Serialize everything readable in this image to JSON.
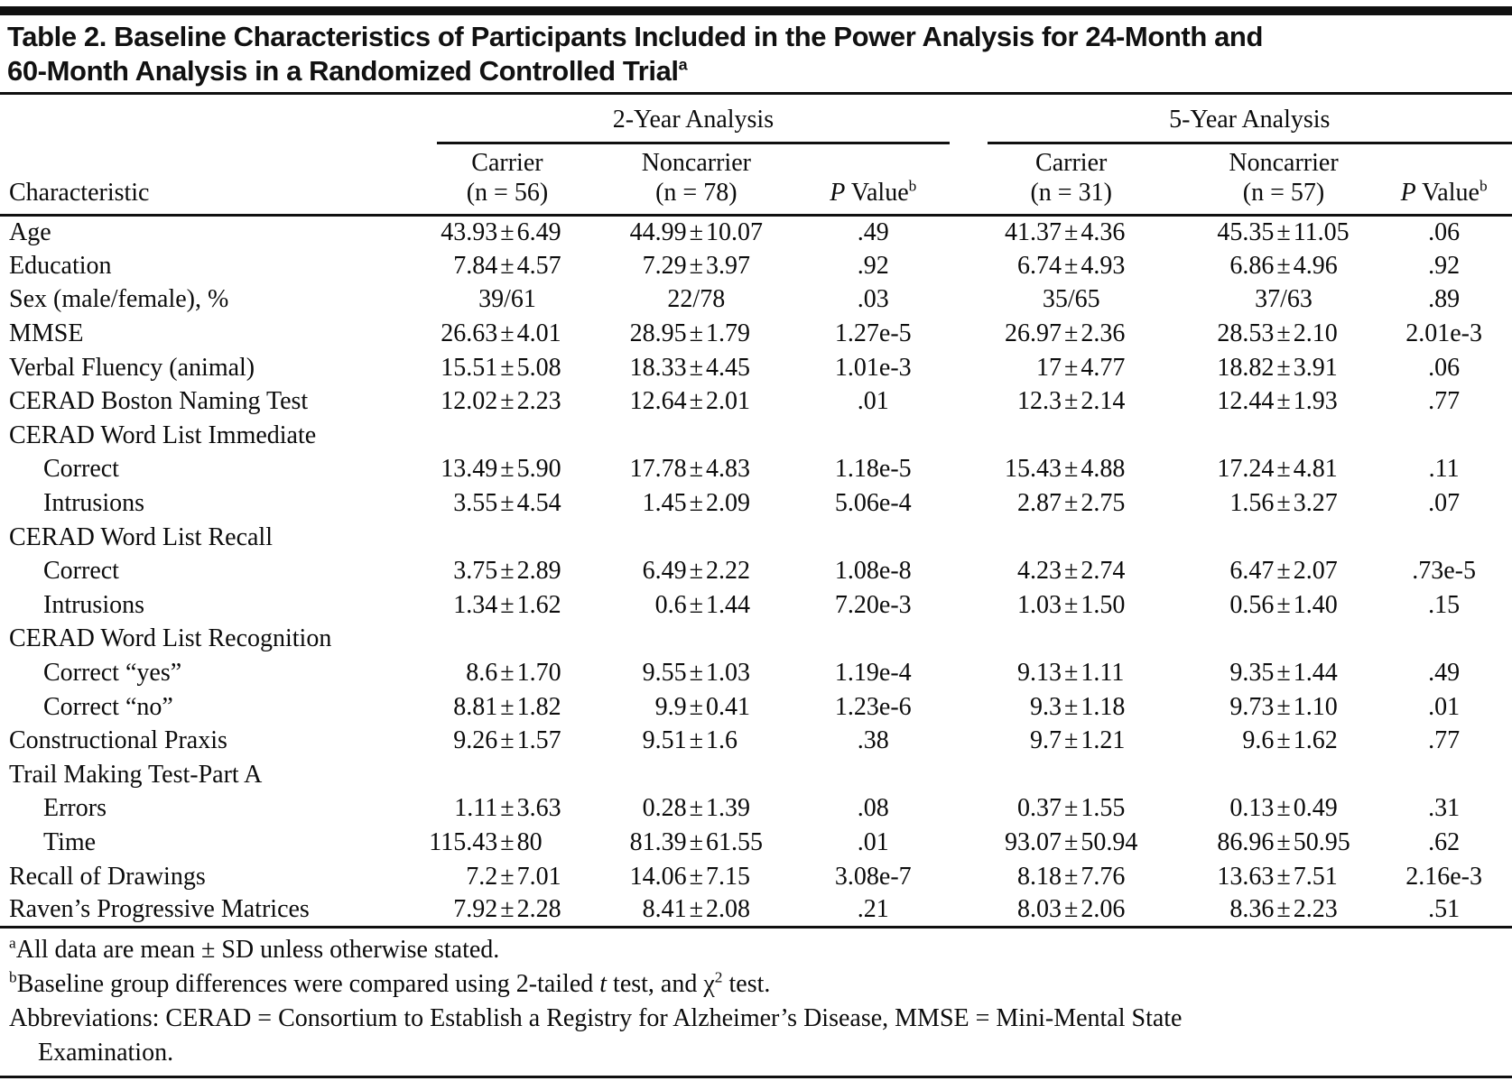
{
  "title": {
    "lines": [
      "Table 2. Baseline Characteristics of Participants Included in the Power Analysis for 24-Month and",
      "60-Month Analysis in a Randomized Controlled Trial"
    ],
    "superscript": "a"
  },
  "table": {
    "characteristic_header": "Characteristic",
    "groups": [
      {
        "label": "2-Year Analysis",
        "carrier": {
          "name": "Carrier",
          "n": "(n = 56)"
        },
        "noncarrier": {
          "name": "Noncarrier",
          "n": "(n = 78)"
        }
      },
      {
        "label": "5-Year Analysis",
        "carrier": {
          "name": "Carrier",
          "n": "(n = 31)"
        },
        "noncarrier": {
          "name": "Noncarrier",
          "n": "(n = 57)"
        }
      }
    ],
    "p_value_header": {
      "italic": "P",
      "text": " Value",
      "sup": "b"
    },
    "rows": [
      {
        "label": "Age",
        "indent": 0,
        "cells": [
          "43.93±6.49",
          "44.99±10.07",
          ".49",
          "41.37±4.36",
          "45.35±11.05",
          ".06"
        ]
      },
      {
        "label": "Education",
        "indent": 0,
        "cells": [
          "7.84±4.57",
          "7.29±3.97",
          ".92",
          "6.74±4.93",
          "6.86±4.96",
          ".92"
        ]
      },
      {
        "label": "Sex (male/female), %",
        "indent": 0,
        "cells": [
          "39/61",
          "22/78",
          ".03",
          "35/65",
          "37/63",
          ".89"
        ]
      },
      {
        "label": "MMSE",
        "indent": 0,
        "cells": [
          "26.63±4.01",
          "28.95±1.79",
          "1.27e-5",
          "26.97±2.36",
          "28.53±2.10",
          "2.01e-3"
        ]
      },
      {
        "label": "Verbal Fluency (animal)",
        "indent": 0,
        "cells": [
          "15.51±5.08",
          "18.33±4.45",
          "1.01e-3",
          "17±4.77",
          "18.82±3.91",
          ".06"
        ]
      },
      {
        "label": "CERAD Boston Naming Test",
        "indent": 0,
        "cells": [
          "12.02±2.23",
          "12.64±2.01",
          ".01",
          "12.3±2.14",
          "12.44±1.93",
          ".77"
        ]
      },
      {
        "label": "CERAD Word List Immediate",
        "indent": 0,
        "cells": [
          "",
          "",
          "",
          "",
          "",
          ""
        ]
      },
      {
        "label": "Correct",
        "indent": 1,
        "cells": [
          "13.49±5.90",
          "17.78±4.83",
          "1.18e-5",
          "15.43±4.88",
          "17.24±4.81",
          ".11"
        ]
      },
      {
        "label": "Intrusions",
        "indent": 1,
        "cells": [
          "3.55±4.54",
          "1.45±2.09",
          "5.06e-4",
          "2.87±2.75",
          "1.56±3.27",
          ".07"
        ]
      },
      {
        "label": "CERAD Word List Recall",
        "indent": 0,
        "cells": [
          "",
          "",
          "",
          "",
          "",
          ""
        ]
      },
      {
        "label": "Correct",
        "indent": 1,
        "cells": [
          "3.75±2.89",
          "6.49±2.22",
          "1.08e-8",
          "4.23±2.74",
          "6.47±2.07",
          ".73e-5"
        ]
      },
      {
        "label": "Intrusions",
        "indent": 1,
        "cells": [
          "1.34±1.62",
          "0.6±1.44",
          "7.20e-3",
          "1.03±1.50",
          "0.56±1.40",
          ".15"
        ]
      },
      {
        "label": "CERAD Word List Recognition",
        "indent": 0,
        "cells": [
          "",
          "",
          "",
          "",
          "",
          ""
        ]
      },
      {
        "label": "Correct “yes”",
        "indent": 1,
        "cells": [
          "8.6±1.70",
          "9.55±1.03",
          "1.19e-4",
          "9.13±1.11",
          "9.35±1.44",
          ".49"
        ]
      },
      {
        "label": "Correct “no”",
        "indent": 1,
        "cells": [
          "8.81±1.82",
          "9.9±0.41",
          "1.23e-6",
          "9.3±1.18",
          "9.73±1.10",
          ".01"
        ]
      },
      {
        "label": "Constructional Praxis",
        "indent": 0,
        "cells": [
          "9.26±1.57",
          "9.51±1.6",
          ".38",
          "9.7±1.21",
          "9.6±1.62",
          ".77"
        ]
      },
      {
        "label": "Trail Making Test-Part A",
        "indent": 0,
        "cells": [
          "",
          "",
          "",
          "",
          "",
          ""
        ]
      },
      {
        "label": "Errors",
        "indent": 1,
        "cells": [
          "1.11±3.63",
          "0.28±1.39",
          ".08",
          "0.37±1.55",
          "0.13±0.49",
          ".31"
        ]
      },
      {
        "label": "Time",
        "indent": 1,
        "cells": [
          "115.43±80",
          "81.39±61.55",
          ".01",
          "93.07±50.94",
          "86.96±50.95",
          ".62"
        ]
      },
      {
        "label": "Recall of Drawings",
        "indent": 0,
        "cells": [
          "7.2±7.01",
          "14.06±7.15",
          "3.08e-7",
          "8.18±7.76",
          "13.63±7.51",
          "2.16e-3"
        ]
      },
      {
        "label": "Raven’s Progressive Matrices",
        "indent": 0,
        "cells": [
          "7.92±2.28",
          "8.41±2.08",
          ".21",
          "8.03±2.06",
          "8.36±2.23",
          ".51"
        ]
      }
    ]
  },
  "footnotes": [
    {
      "marker": "a",
      "hanging": false,
      "segments": [
        {
          "text": "All data are mean ± SD unless otherwise stated."
        }
      ]
    },
    {
      "marker": "b",
      "hanging": false,
      "segments": [
        {
          "text": "Baseline group differences were compared using 2-tailed "
        },
        {
          "text": "t",
          "italic": true
        },
        {
          "text": " test, and χ"
        },
        {
          "text": "2",
          "sup": true
        },
        {
          "text": " test."
        }
      ]
    },
    {
      "marker": "",
      "hanging": true,
      "segments": [
        {
          "text": "Abbreviations: CERAD = Consortium to Establish a Registry for Alzheimer’s Disease, MMSE = Mini-Mental State"
        },
        {
          "br": true
        },
        {
          "text": "Examination."
        }
      ]
    }
  ]
}
